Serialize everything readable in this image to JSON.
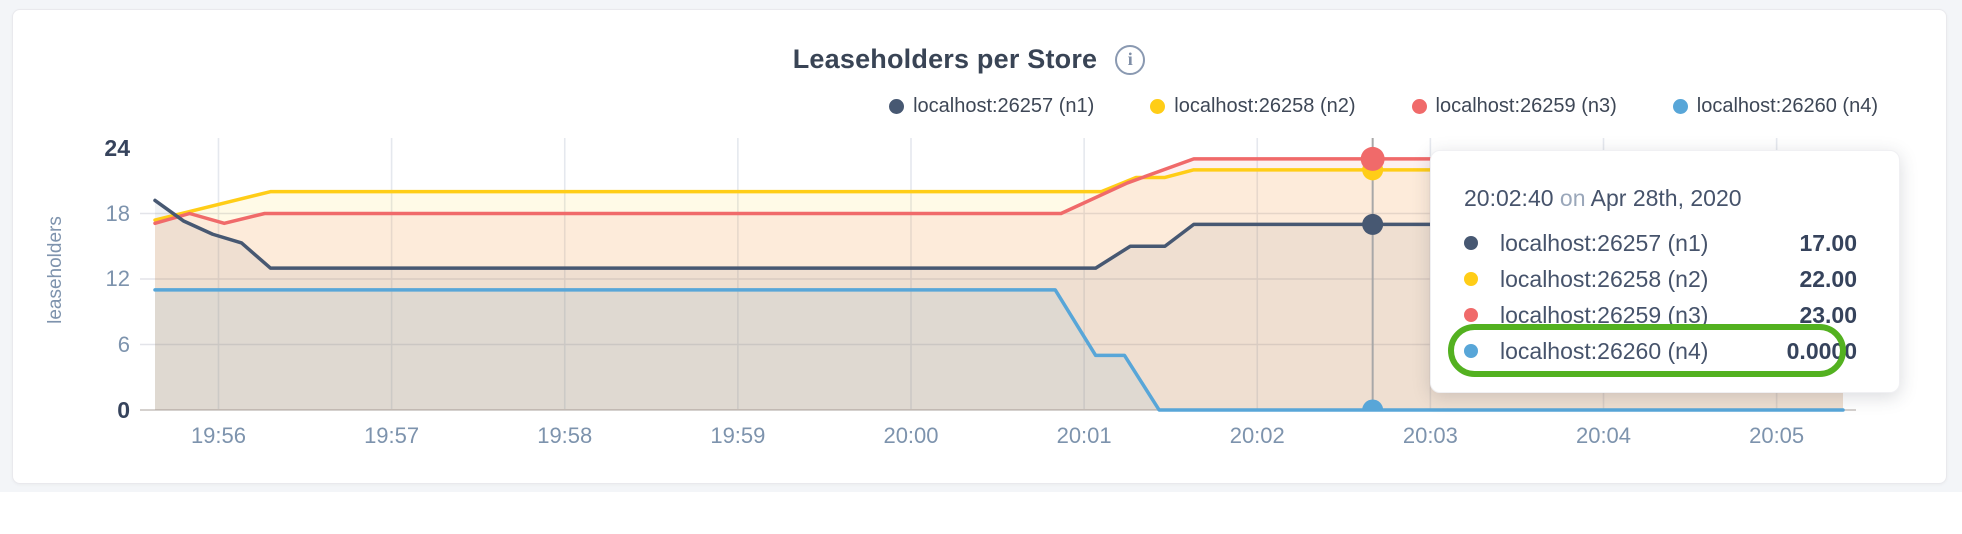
{
  "page": {
    "background_strip_color": "#f3f5f8",
    "card_background": "#ffffff"
  },
  "header": {
    "title": "Leaseholders per Store",
    "info_glyph": "i"
  },
  "legend": {
    "items": [
      {
        "label": "localhost:26257 (n1)",
        "color": "#475872"
      },
      {
        "label": "localhost:26258 (n2)",
        "color": "#ffcd17"
      },
      {
        "label": "localhost:26259 (n3)",
        "color": "#f06a6a"
      },
      {
        "label": "localhost:26260 (n4)",
        "color": "#58a6d8"
      }
    ]
  },
  "chart_data": {
    "type": "area",
    "title": "Leaseholders per Store",
    "xlabel": "",
    "ylabel": "leaseholders",
    "ylim": [
      0,
      24
    ],
    "grid": true,
    "legend_position": "top-right",
    "x_domain_seconds_after_19_55": [
      38,
      623
    ],
    "x_ticks": [
      {
        "t": 60,
        "label": "19:56"
      },
      {
        "t": 120,
        "label": "19:57"
      },
      {
        "t": 180,
        "label": "19:58"
      },
      {
        "t": 240,
        "label": "19:59"
      },
      {
        "t": 300,
        "label": "20:00"
      },
      {
        "t": 360,
        "label": "20:01"
      },
      {
        "t": 420,
        "label": "20:02"
      },
      {
        "t": 480,
        "label": "20:03"
      },
      {
        "t": 540,
        "label": "20:04"
      },
      {
        "t": 600,
        "label": "20:05"
      }
    ],
    "y_ticks": [
      {
        "v": 0,
        "label": "0",
        "strong": true
      },
      {
        "v": 6,
        "label": "6",
        "strong": false
      },
      {
        "v": 12,
        "label": "12",
        "strong": false
      },
      {
        "v": 18,
        "label": "18",
        "strong": false
      },
      {
        "v": 24,
        "label": "24",
        "strong": true
      }
    ],
    "series": [
      {
        "name": "localhost:26257 (n1)",
        "color": "#475872",
        "fill_opacity": 0.08,
        "points": [
          [
            38,
            19.2
          ],
          [
            48,
            17.3
          ],
          [
            58,
            16.1
          ],
          [
            68,
            15.3
          ],
          [
            78,
            13
          ],
          [
            364,
            13
          ],
          [
            376,
            15
          ],
          [
            388,
            15
          ],
          [
            398,
            17
          ],
          [
            623,
            17
          ]
        ]
      },
      {
        "name": "localhost:26258 (n2)",
        "color": "#ffcd17",
        "fill_opacity": 0.1,
        "points": [
          [
            38,
            17.4
          ],
          [
            78,
            20
          ],
          [
            366,
            20
          ],
          [
            378,
            21.3
          ],
          [
            388,
            21.3
          ],
          [
            398,
            22
          ],
          [
            623,
            22
          ]
        ]
      },
      {
        "name": "localhost:26259 (n3)",
        "color": "#f06a6a",
        "fill_opacity": 0.1,
        "points": [
          [
            38,
            17.1
          ],
          [
            50,
            18
          ],
          [
            62,
            17.1
          ],
          [
            76,
            18
          ],
          [
            352,
            18
          ],
          [
            375,
            20.8
          ],
          [
            398,
            23
          ],
          [
            623,
            23
          ]
        ]
      },
      {
        "name": "localhost:26260 (n4)",
        "color": "#58a6d8",
        "fill_opacity": 0.1,
        "points": [
          [
            38,
            11
          ],
          [
            350,
            11
          ],
          [
            364,
            5
          ],
          [
            374,
            5
          ],
          [
            386,
            0
          ],
          [
            623,
            0
          ]
        ]
      }
    ],
    "hover": {
      "t": 460,
      "time_label": "20:02:40",
      "points": [
        {
          "series": "localhost:26257 (n1)",
          "value": 17,
          "color": "#475872",
          "radius": 10.5
        },
        {
          "series": "localhost:26258 (n2)",
          "value": 22,
          "color": "#ffcd17",
          "radius": 10.5
        },
        {
          "series": "localhost:26259 (n3)",
          "value": 23,
          "color": "#f06a6a",
          "radius": 12
        },
        {
          "series": "localhost:26260 (n4)",
          "value": 0,
          "color": "#58a6d8",
          "radius": 10.5
        }
      ],
      "line_color": "#a8a8a8"
    },
    "colors": {
      "grid_vertical": "#e5e8ee",
      "grid_horizontal": "#e3e4e9",
      "axis_line": "#d5d1ce"
    }
  },
  "tooltip": {
    "time": "20:02:40",
    "connector": "on",
    "date": "Apr 28th, 2020",
    "rows": [
      {
        "label": "localhost:26257 (n1)",
        "value": "17.00",
        "color": "#475872",
        "highlighted": false
      },
      {
        "label": "localhost:26258 (n2)",
        "value": "22.00",
        "color": "#ffcd17",
        "highlighted": false
      },
      {
        "label": "localhost:26259 (n3)",
        "value": "23.00",
        "color": "#f06a6a",
        "highlighted": false
      },
      {
        "label": "localhost:26260 (n4)",
        "value": "0.0000",
        "color": "#58a6d8",
        "highlighted": true
      }
    ],
    "highlight_color": "#53b120"
  }
}
